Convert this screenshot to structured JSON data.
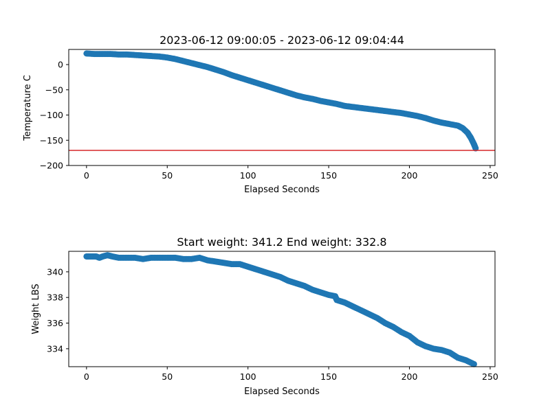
{
  "chart_data": [
    {
      "type": "scatter",
      "title": "2023-06-12 09:00:05 - 2023-06-12 09:04:44",
      "xlabel": "Elapsed Seconds",
      "ylabel": "Temperature C",
      "xlim": [
        -11,
        253
      ],
      "ylim": [
        -200,
        30
      ],
      "xticks": [
        0,
        50,
        100,
        150,
        200,
        250
      ],
      "xtick_labels": [
        "0",
        "50",
        "100",
        "150",
        "200",
        "250"
      ],
      "yticks": [
        -200,
        -150,
        -100,
        -50,
        0
      ],
      "ytick_labels": [
        "−200",
        "−150",
        "−100",
        "−50",
        "0"
      ],
      "marker_color": "#1f77b4",
      "reference_line": {
        "y": -170,
        "color": "#d62728"
      },
      "grid": false,
      "series": [
        {
          "x": [
            0,
            5,
            10,
            15,
            20,
            25,
            30,
            35,
            40,
            45,
            50,
            55,
            60,
            65,
            70,
            75,
            80,
            85,
            90,
            95,
            100,
            105,
            110,
            115,
            120,
            125,
            130,
            135,
            140,
            145,
            150,
            155,
            160,
            165,
            170,
            175,
            180,
            185,
            190,
            195,
            200,
            205,
            210,
            215,
            220,
            225,
            230,
            233,
            236,
            238,
            240,
            241
          ],
          "y": [
            22,
            21,
            21,
            21,
            20,
            20,
            19,
            18,
            17,
            16,
            14,
            11,
            7,
            3,
            -1,
            -5,
            -10,
            -15,
            -21,
            -26,
            -31,
            -36,
            -41,
            -46,
            -51,
            -56,
            -61,
            -65,
            -68,
            -72,
            -75,
            -78,
            -82,
            -84,
            -86,
            -88,
            -90,
            -92,
            -94,
            -96,
            -99,
            -102,
            -106,
            -111,
            -115,
            -118,
            -121,
            -126,
            -135,
            -145,
            -158,
            -166
          ]
        }
      ]
    },
    {
      "type": "scatter",
      "title": "Start weight: 341.2 End weight: 332.8",
      "xlabel": "Elapsed Seconds",
      "ylabel": "Weight LBS",
      "xlim": [
        -11,
        253
      ],
      "ylim": [
        332.6,
        341.6
      ],
      "xticks": [
        0,
        50,
        100,
        150,
        200,
        250
      ],
      "xtick_labels": [
        "0",
        "50",
        "100",
        "150",
        "200",
        "250"
      ],
      "yticks": [
        334,
        336,
        338,
        340
      ],
      "ytick_labels": [
        "334",
        "336",
        "338",
        "340"
      ],
      "marker_color": "#1f77b4",
      "grid": false,
      "series": [
        {
          "x": [
            0,
            3,
            6,
            8,
            10,
            13,
            16,
            20,
            25,
            30,
            35,
            40,
            45,
            50,
            55,
            60,
            65,
            70,
            75,
            80,
            85,
            90,
            95,
            100,
            105,
            110,
            115,
            120,
            125,
            130,
            135,
            140,
            145,
            150,
            154,
            155,
            160,
            165,
            170,
            175,
            180,
            185,
            190,
            195,
            200,
            205,
            210,
            215,
            220,
            225,
            230,
            235,
            240
          ],
          "y": [
            341.2,
            341.2,
            341.2,
            341.1,
            341.2,
            341.3,
            341.2,
            341.1,
            341.1,
            341.1,
            341.0,
            341.1,
            341.1,
            341.1,
            341.1,
            341.0,
            341.0,
            341.1,
            340.9,
            340.8,
            340.7,
            340.6,
            340.6,
            340.4,
            340.2,
            340.0,
            339.8,
            339.6,
            339.3,
            339.1,
            338.9,
            338.6,
            338.4,
            338.2,
            338.1,
            337.8,
            337.6,
            337.3,
            337.0,
            336.7,
            336.4,
            336.0,
            335.7,
            335.3,
            335.0,
            334.5,
            334.2,
            334.0,
            333.9,
            333.7,
            333.3,
            333.1,
            332.8
          ]
        }
      ]
    }
  ]
}
